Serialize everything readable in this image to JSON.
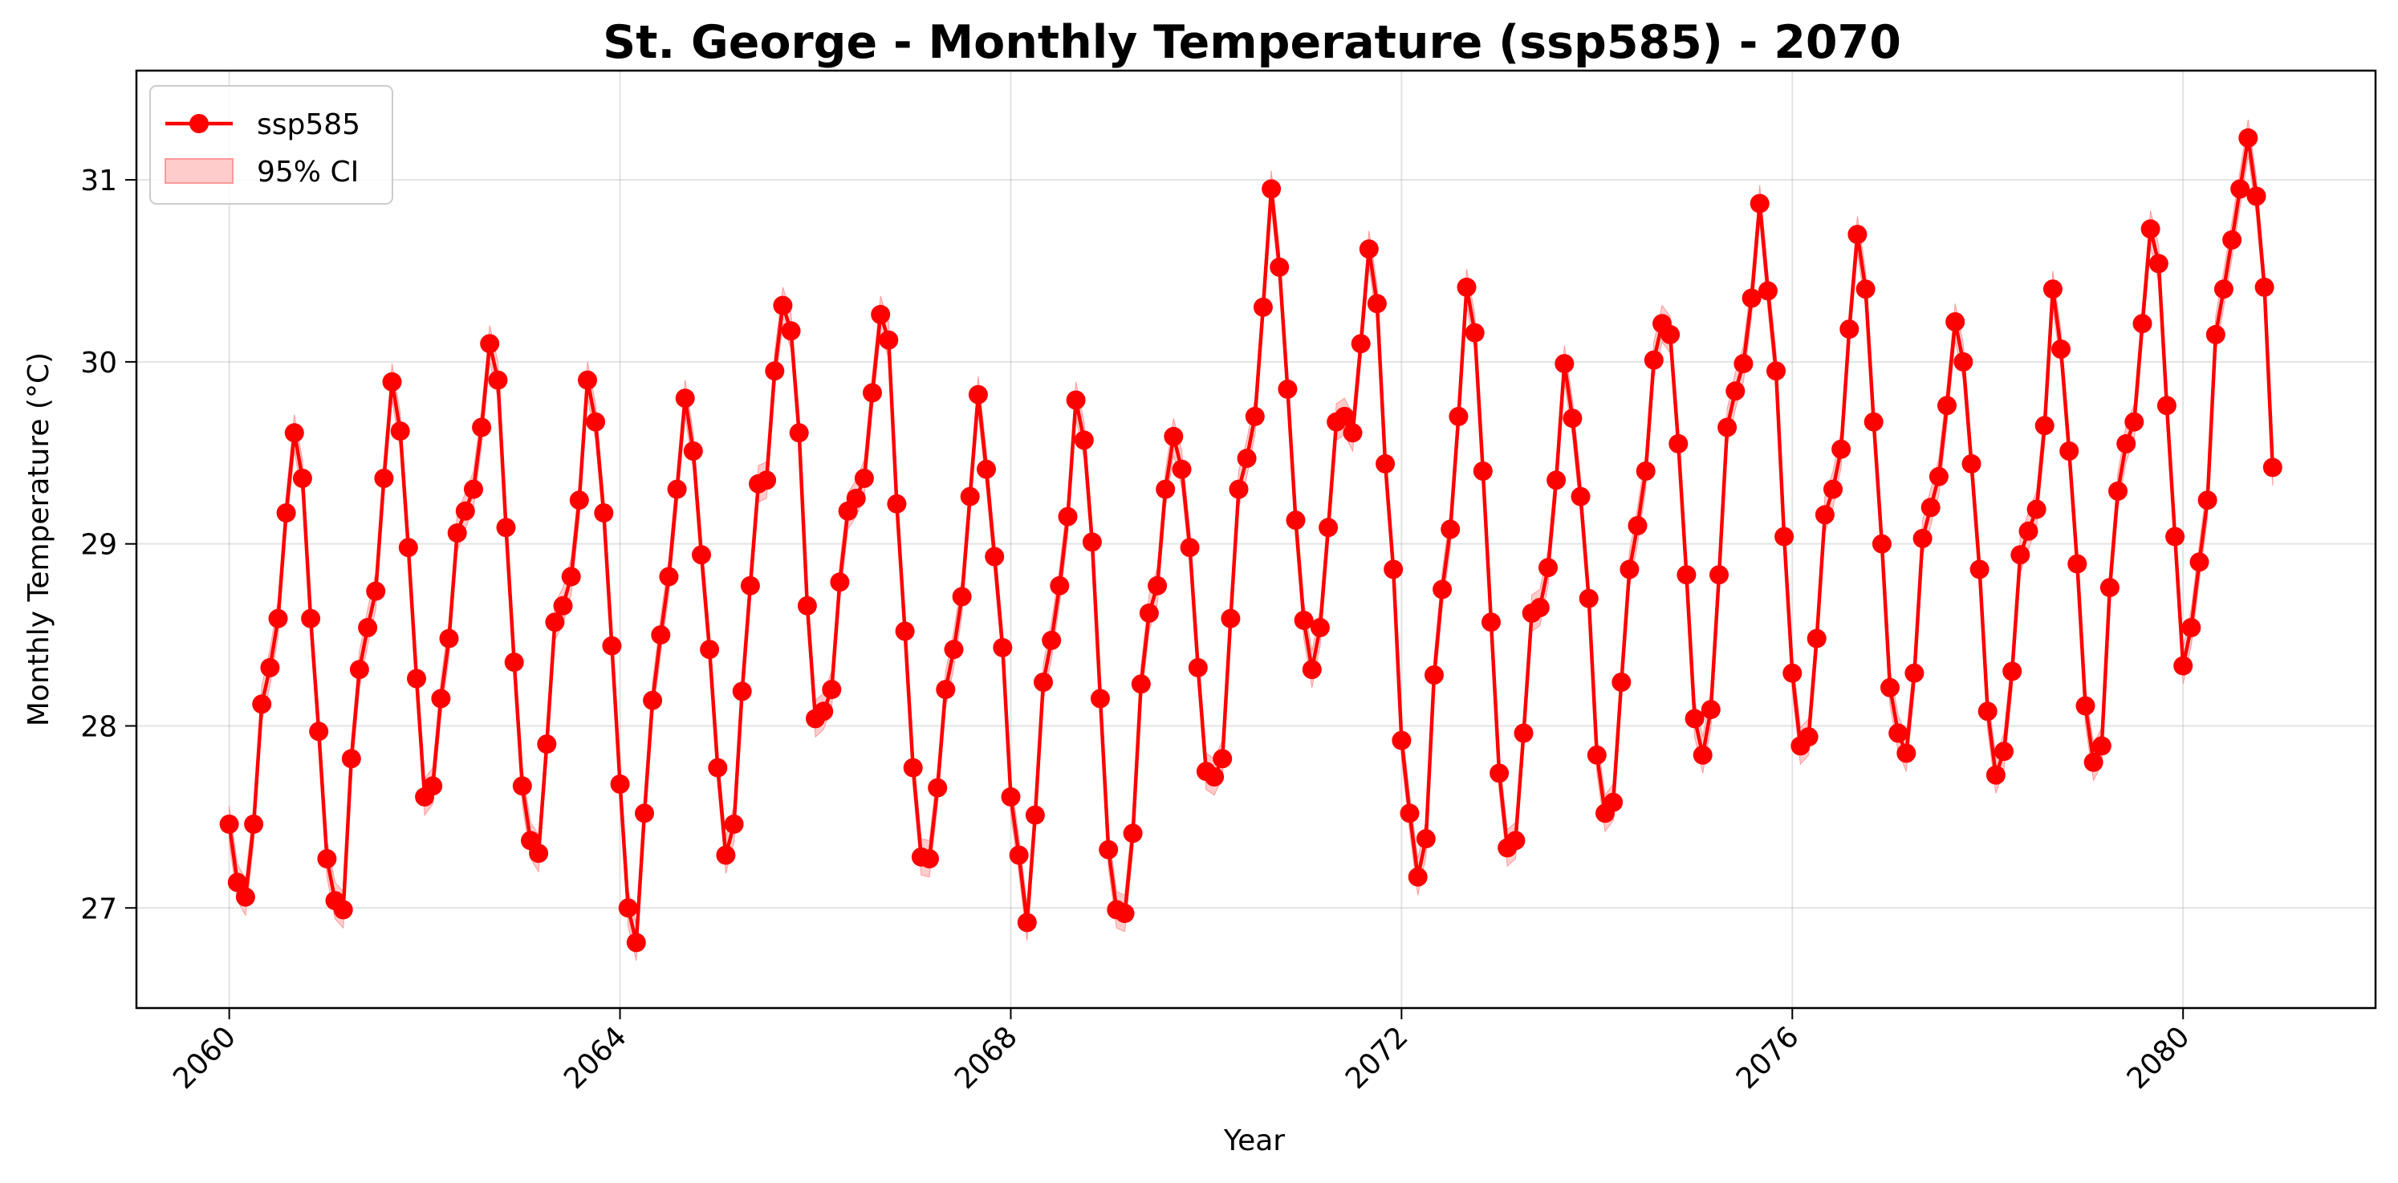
{
  "chart_data": {
    "type": "line",
    "title": "St. George - Monthly Temperature (ssp585) - 2070",
    "xlabel": "Year",
    "ylabel": "Monthly Temperature (°C)",
    "xlim": [
      2059.05,
      2081.97
    ],
    "ylim": [
      26.45,
      31.6
    ],
    "xticks": [
      "2060",
      "2064",
      "2068",
      "2072",
      "2076",
      "2080"
    ],
    "yticks": [
      "27",
      "28",
      "29",
      "30",
      "31"
    ],
    "grid": true,
    "legend": {
      "position": "top-left",
      "entries": [
        "ssp585",
        "95% CI"
      ]
    },
    "colors": {
      "line": "#ff0000",
      "ci_fill": "#ffcccc",
      "ci_edge": "#ff9999"
    },
    "ci_halfwidth": 0.1,
    "series": [
      {
        "name": "ssp585",
        "x_start": "2060-01",
        "x_step_months": 1,
        "values": [
          27.46,
          27.14,
          27.06,
          27.46,
          28.12,
          28.32,
          28.59,
          29.17,
          29.61,
          29.36,
          28.59,
          27.97,
          27.27,
          27.04,
          26.99,
          27.82,
          28.31,
          28.54,
          28.74,
          29.36,
          29.89,
          29.62,
          28.98,
          28.26,
          27.61,
          27.67,
          28.15,
          28.48,
          29.06,
          29.18,
          29.3,
          29.64,
          30.1,
          29.9,
          29.09,
          28.35,
          27.67,
          27.37,
          27.3,
          27.9,
          28.57,
          28.66,
          28.82,
          29.24,
          29.9,
          29.67,
          29.17,
          28.44,
          27.68,
          27.0,
          26.81,
          27.52,
          28.14,
          28.5,
          28.82,
          29.3,
          29.8,
          29.51,
          28.94,
          28.42,
          27.77,
          27.29,
          27.46,
          28.19,
          28.77,
          29.33,
          29.35,
          29.95,
          30.31,
          30.17,
          29.61,
          28.66,
          28.04,
          28.08,
          28.2,
          28.79,
          29.18,
          29.25,
          29.36,
          29.83,
          30.26,
          30.12,
          29.22,
          28.52,
          27.77,
          27.28,
          27.27,
          27.66,
          28.2,
          28.42,
          28.71,
          29.26,
          29.82,
          29.41,
          28.93,
          28.43,
          27.61,
          27.29,
          26.92,
          27.51,
          28.24,
          28.47,
          28.77,
          29.15,
          29.79,
          29.57,
          29.01,
          28.15,
          27.32,
          26.99,
          26.97,
          27.41,
          28.23,
          28.62,
          28.77,
          29.3,
          29.59,
          29.41,
          28.98,
          28.32,
          27.75,
          27.72,
          27.82,
          28.59,
          29.3,
          29.47,
          29.7,
          30.3,
          30.95,
          30.52,
          29.85,
          29.13,
          28.58,
          28.31,
          28.54,
          29.09,
          29.67,
          29.7,
          29.61,
          30.1,
          30.62,
          30.32,
          29.44,
          28.86,
          27.92,
          27.52,
          27.17,
          27.38,
          28.28,
          28.75,
          29.08,
          29.7,
          30.41,
          30.16,
          29.4,
          28.57,
          27.74,
          27.33,
          27.37,
          27.96,
          28.62,
          28.65,
          28.87,
          29.35,
          29.99,
          29.69,
          29.26,
          28.7,
          27.84,
          27.52,
          27.58,
          28.24,
          28.86,
          29.1,
          29.4,
          30.01,
          30.21,
          30.15,
          29.55,
          28.83,
          28.04,
          27.84,
          28.09,
          28.83,
          29.64,
          29.84,
          29.99,
          30.35,
          30.87,
          30.39,
          29.95,
          29.04,
          28.29,
          27.89,
          27.94,
          28.48,
          29.16,
          29.3,
          29.52,
          30.18,
          30.7,
          30.4,
          29.67,
          29.0,
          28.21,
          27.96,
          27.85,
          28.29,
          29.03,
          29.2,
          29.37,
          29.76,
          30.22,
          30.0,
          29.44,
          28.86,
          28.08,
          27.73,
          27.86,
          28.3,
          28.94,
          29.07,
          29.19,
          29.65,
          30.4,
          30.07,
          29.51,
          28.89,
          28.11,
          27.8,
          27.89,
          28.76,
          29.29,
          29.55,
          29.67,
          30.21,
          30.73,
          30.54,
          29.76,
          29.04,
          28.33,
          28.54,
          28.9,
          29.24,
          30.15,
          30.4,
          30.67,
          30.95,
          31.23,
          30.91,
          30.41,
          29.42
        ]
      }
    ]
  }
}
